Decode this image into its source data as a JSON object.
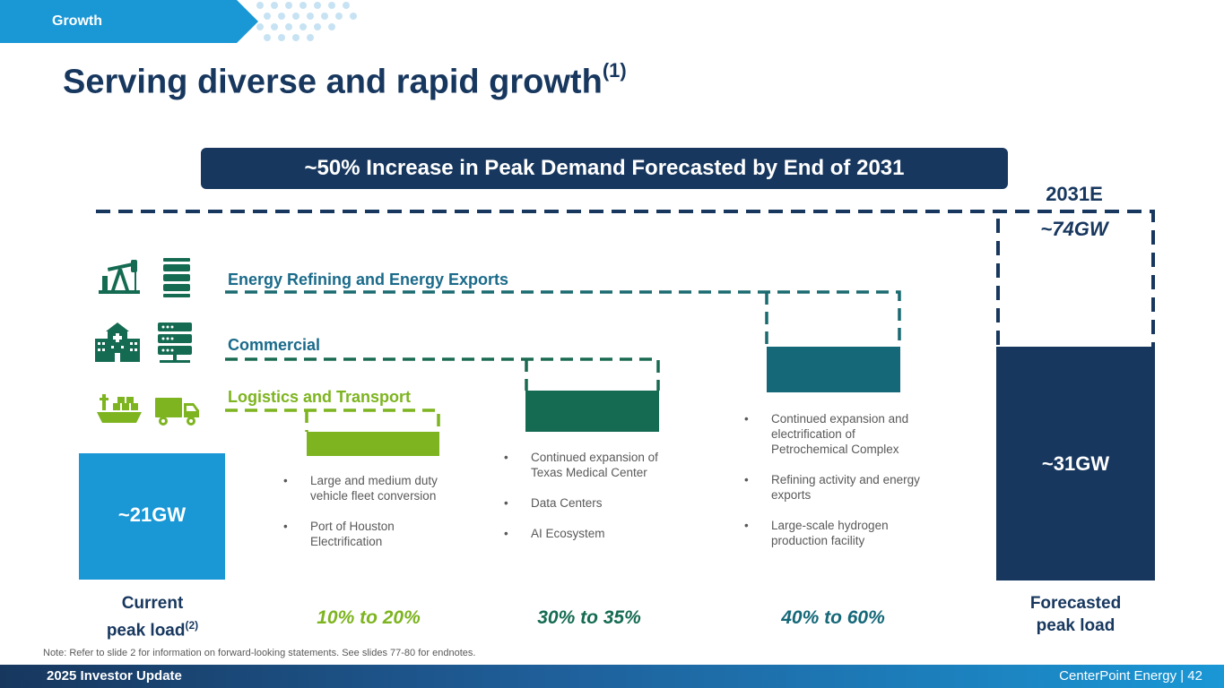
{
  "header": {
    "tab_label": "Growth"
  },
  "title": {
    "text": "Serving diverse and rapid growth",
    "superscript": "(1)"
  },
  "banner": {
    "text": "~50% Increase in Peak Demand Forecasted by End of 2031"
  },
  "forecast": {
    "year": "2031E",
    "total": "~74GW"
  },
  "categories": {
    "energy": "Energy Refining and Energy Exports",
    "commercial": "Commercial",
    "logistics": "Logistics and Transport"
  },
  "bars": {
    "current": "~21GW",
    "forecasted": "~31GW"
  },
  "bullets": {
    "logistics": [
      "Large and medium duty vehicle fleet conversion",
      "Port of Houston Electrification"
    ],
    "commercial": [
      "Continued expansion of Texas Medical Center",
      "Data Centers",
      "AI Ecosystem"
    ],
    "energy": [
      "Continued expansion and electrification of Petrochemical Complex",
      "Refining activity and energy exports",
      "Large-scale hydrogen production facility"
    ]
  },
  "axis": {
    "current_line1": "Current",
    "current_line2": "peak load",
    "current_sup": "(2)",
    "forecast_line1": "Forecasted",
    "forecast_line2": "peak load",
    "pct_logistics": "10% to 20%",
    "pct_commercial": "30% to 35%",
    "pct_energy": "40% to 60%"
  },
  "note": "Note: Refer to slide 2 for information on forward-looking statements. See slides 77-80 for endnotes.",
  "footer": {
    "left": "2025 Investor Update",
    "right": "CenterPoint Energy | 42"
  },
  "colors": {
    "navy": "#17375e",
    "blue": "#1a97d5",
    "green": "#7db41f",
    "dark_green": "#156b52",
    "teal": "#156878"
  },
  "chart_data": {
    "type": "bar",
    "title": "~50% Increase in Peak Demand Forecasted by End of 2031",
    "categories": [
      "Current peak load",
      "Logistics and Transport",
      "Commercial",
      "Energy Refining and Energy Exports",
      "Forecasted peak load"
    ],
    "values_label": [
      "~21GW",
      "10% to 20%",
      "30% to 35%",
      "40% to 60%",
      "~31GW"
    ],
    "current_peak_gw": 21,
    "forecasted_peak_gw": 31,
    "forecasted_total_gw": 74,
    "forecast_year": "2031E",
    "growth_ranges_pct": [
      [
        10,
        20
      ],
      [
        30,
        35
      ],
      [
        40,
        60
      ]
    ],
    "xlabel": "",
    "ylabel": ""
  }
}
